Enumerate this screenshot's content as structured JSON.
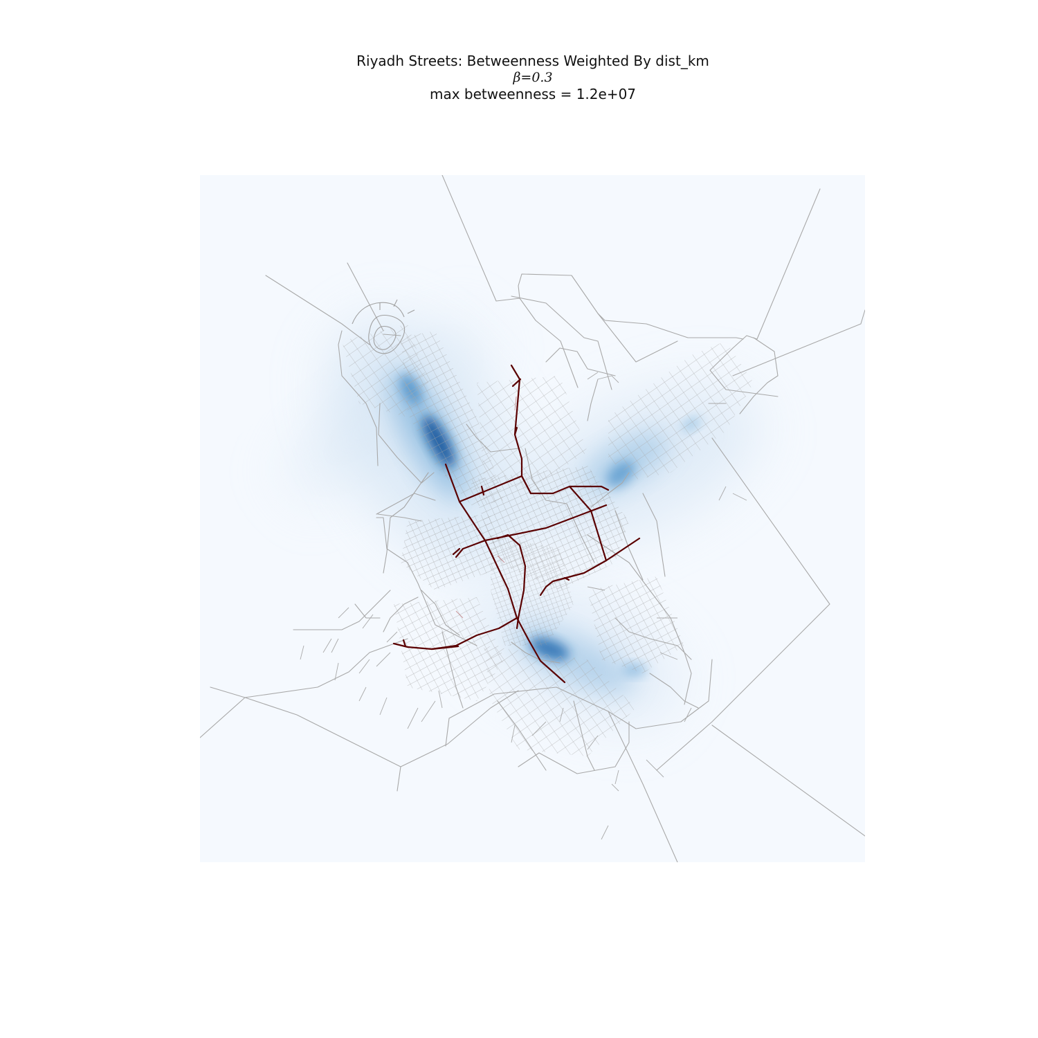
{
  "figure": {
    "title": "Riyadh Streets: Betweenness Weighted By dist_km",
    "beta_label": "β=0.3",
    "max_label": "max betweenness = 1.2e+07"
  },
  "map": {
    "background_color": "#f5f9fe",
    "street_color": "#9a9a9a",
    "high_betweenness_color": "#5a0000",
    "density_color": "#0b4f98",
    "density_colormap": "Blues"
  }
}
